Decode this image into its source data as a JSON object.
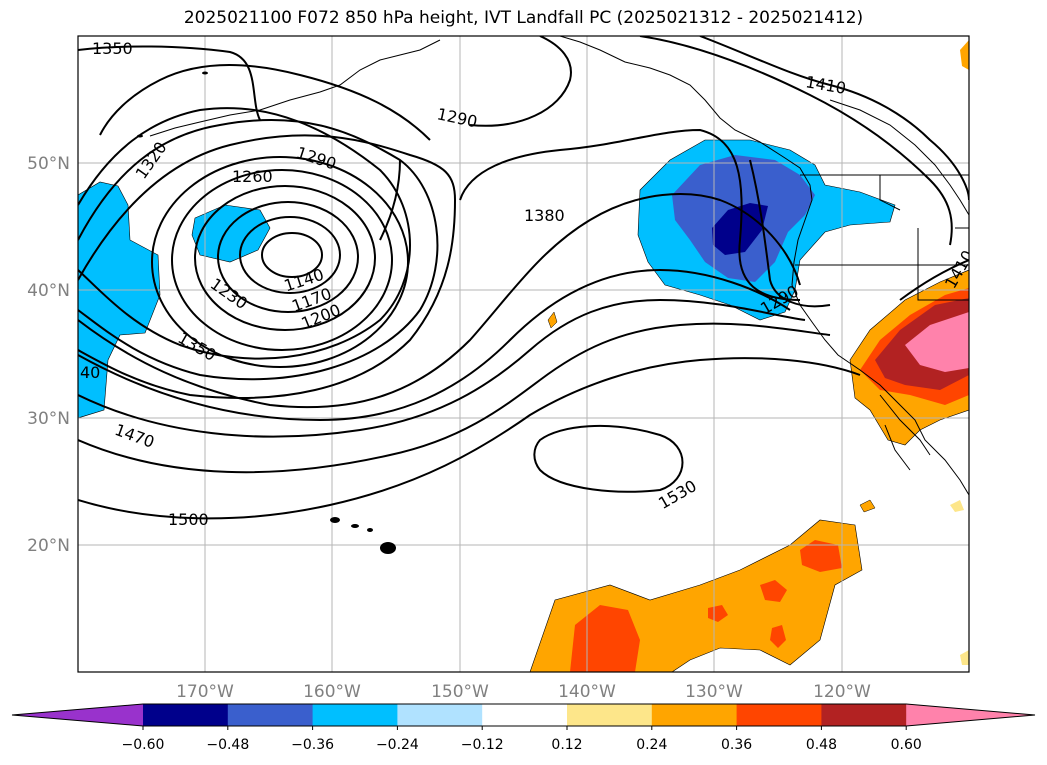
{
  "title": "2025021100 F072 850 hPa height, IVT Landfall PC (2025021312 - 2025021412)",
  "lat_labels": [
    "50°N",
    "40°N",
    "30°N",
    "20°N"
  ],
  "lon_labels": [
    "170°W",
    "160°W",
    "150°W",
    "140°W",
    "130°W",
    "120°W"
  ],
  "contour_labels": [
    "1350",
    "1320",
    "1260",
    "1290",
    "1290",
    "1380",
    "1410",
    "1140",
    "1170",
    "1200",
    "1230",
    "1350",
    "1290",
    "1410",
    "40",
    "1470",
    "1500",
    "1530"
  ],
  "colorbar": {
    "ticks": [
      "−0.60",
      "−0.48",
      "−0.36",
      "−0.24",
      "−0.12",
      "0.12",
      "0.24",
      "0.36",
      "0.48",
      "0.60"
    ],
    "colors": [
      "#9932cc",
      "#00008b",
      "#3a5fcd",
      "#00bfff",
      "#b0e2ff",
      "#ffffff",
      "#fde68a",
      "#ffa500",
      "#ff4500",
      "#b22222",
      "#ff82ab"
    ]
  }
}
